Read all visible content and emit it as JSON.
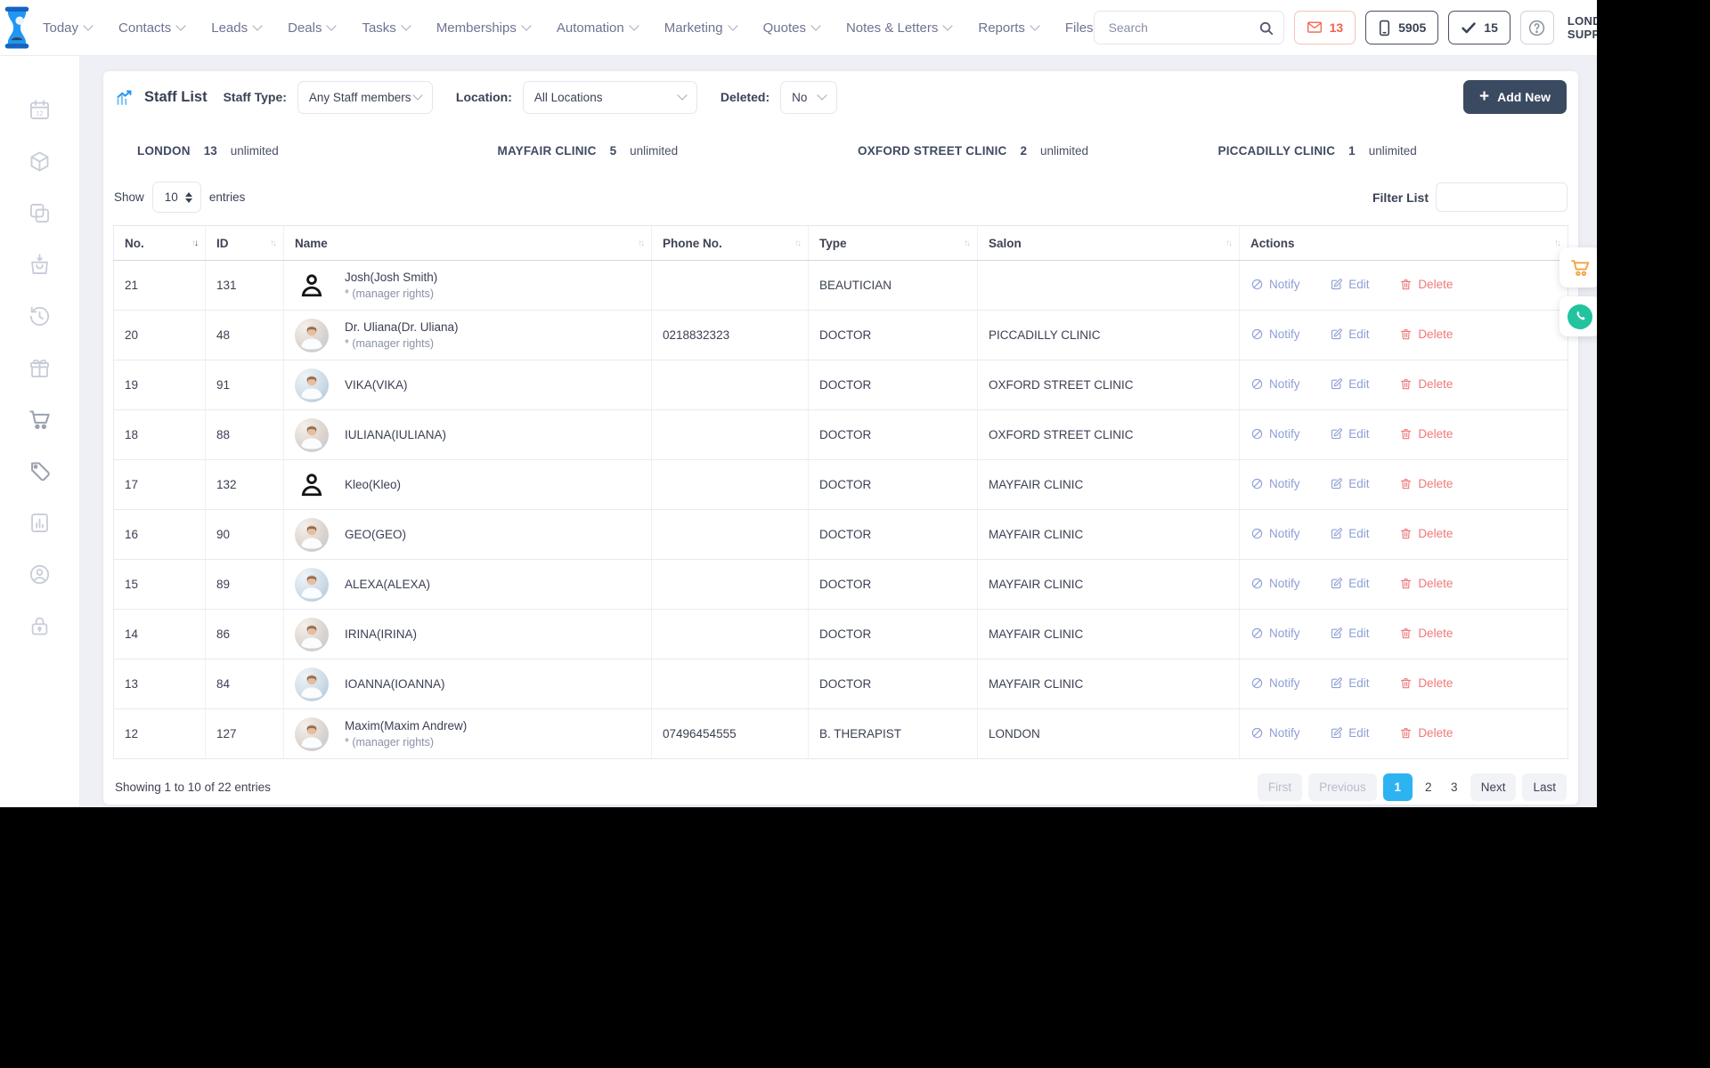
{
  "header": {
    "nav": [
      {
        "label": "Today",
        "dropdown": true
      },
      {
        "label": "Contacts",
        "dropdown": true
      },
      {
        "label": "Leads",
        "dropdown": true
      },
      {
        "label": "Deals",
        "dropdown": true
      },
      {
        "label": "Tasks",
        "dropdown": true
      },
      {
        "label": "Memberships",
        "dropdown": true
      },
      {
        "label": "Automation",
        "dropdown": true
      },
      {
        "label": "Marketing",
        "dropdown": true
      },
      {
        "label": "Quotes",
        "dropdown": true
      },
      {
        "label": "Notes & Letters",
        "dropdown": true
      },
      {
        "label": "Reports",
        "dropdown": true
      },
      {
        "label": "Files",
        "dropdown": false
      }
    ],
    "search_placeholder": "Search",
    "badges": {
      "mail": "13",
      "phone": "5905",
      "tasks": "15"
    },
    "user": {
      "line1": "LONDON",
      "line2": "SUPPORT"
    }
  },
  "sidebar": {
    "icons": [
      "calendar-icon",
      "package-icon",
      "copy-icon",
      "bag-icon",
      "history-icon",
      "gift-icon",
      "cart-icon",
      "tag-icon",
      "report-icon",
      "user-circle-icon",
      "lock-icon"
    ]
  },
  "page": {
    "title": "Staff List",
    "filters": {
      "staff_type_label": "Staff Type:",
      "staff_type_value": "Any Staff members",
      "location_label": "Location:",
      "location_value": "All Locations",
      "deleted_label": "Deleted:",
      "deleted_value": "No"
    },
    "add_new_label": "Add New",
    "stats": [
      {
        "name": "LONDON",
        "count": "13",
        "limit": "unlimited"
      },
      {
        "name": "MAYFAIR CLINIC",
        "count": "5",
        "limit": "unlimited"
      },
      {
        "name": "OXFORD STREET CLINIC",
        "count": "2",
        "limit": "unlimited"
      },
      {
        "name": "PICCADILLY CLINIC",
        "count": "1",
        "limit": "unlimited"
      }
    ],
    "list_controls": {
      "show_label": "Show",
      "page_size": "10",
      "entries_label": "entries",
      "filter_label": "Filter List"
    },
    "table": {
      "columns": [
        "No.",
        "ID",
        "Name",
        "Phone No.",
        "Type",
        "Salon",
        "Actions"
      ],
      "rows": [
        {
          "no": "21",
          "id": "131",
          "name": "Josh(Josh Smith)",
          "note": "* (manager rights)",
          "phone": "",
          "type": "BEAUTICIAN",
          "salon": "",
          "avatar": "default-icon"
        },
        {
          "no": "20",
          "id": "48",
          "name": "Dr. Uliana(Dr. Uliana)",
          "note": "* (manager rights)",
          "phone": "0218832323",
          "type": "DOCTOR",
          "salon": "PICCADILLY CLINIC",
          "avatar": "photo"
        },
        {
          "no": "19",
          "id": "91",
          "name": "VIKA(VIKA)",
          "note": "",
          "phone": "",
          "type": "DOCTOR",
          "salon": "OXFORD STREET CLINIC",
          "avatar": "photo"
        },
        {
          "no": "18",
          "id": "88",
          "name": "IULIANA(IULIANA)",
          "note": "",
          "phone": "",
          "type": "DOCTOR",
          "salon": "OXFORD STREET CLINIC",
          "avatar": "photo"
        },
        {
          "no": "17",
          "id": "132",
          "name": "Kleo(Kleo)",
          "note": "",
          "phone": "",
          "type": "DOCTOR",
          "salon": "MAYFAIR CLINIC",
          "avatar": "default-icon"
        },
        {
          "no": "16",
          "id": "90",
          "name": "GEO(GEO)",
          "note": "",
          "phone": "",
          "type": "DOCTOR",
          "salon": "MAYFAIR CLINIC",
          "avatar": "photo"
        },
        {
          "no": "15",
          "id": "89",
          "name": "ALEXA(ALEXA)",
          "note": "",
          "phone": "",
          "type": "DOCTOR",
          "salon": "MAYFAIR CLINIC",
          "avatar": "photo"
        },
        {
          "no": "14",
          "id": "86",
          "name": "IRINA(IRINA)",
          "note": "",
          "phone": "",
          "type": "DOCTOR",
          "salon": "MAYFAIR CLINIC",
          "avatar": "photo"
        },
        {
          "no": "13",
          "id": "84",
          "name": "IOANNA(IOANNA)",
          "note": "",
          "phone": "",
          "type": "DOCTOR",
          "salon": "MAYFAIR CLINIC",
          "avatar": "photo"
        },
        {
          "no": "12",
          "id": "127",
          "name": "Maxim(Maxim Andrew)",
          "note": "* (manager rights)",
          "phone": "07496454555",
          "type": "B. THERAPIST",
          "salon": "LONDON",
          "avatar": "photo"
        }
      ]
    },
    "actions": {
      "notify": "Notify",
      "edit": "Edit",
      "delete": "Delete"
    },
    "footer": {
      "summary": "Showing 1 to 10 of 22 entries",
      "pagination": [
        "First",
        "Previous",
        "1",
        "2",
        "3",
        "Next",
        "Last"
      ],
      "active_page": "1"
    }
  },
  "colors": {
    "accent_blue": "#2db3ef",
    "logo_blue": "#2196f3",
    "add_new_navy": "#3a4a61",
    "action_periwinkle": "#8d9fd6",
    "delete_red": "#f07878",
    "badge_red": "#f0624d",
    "cart_orange": "#f2a33c",
    "whatsapp_green": "#22c39e"
  }
}
